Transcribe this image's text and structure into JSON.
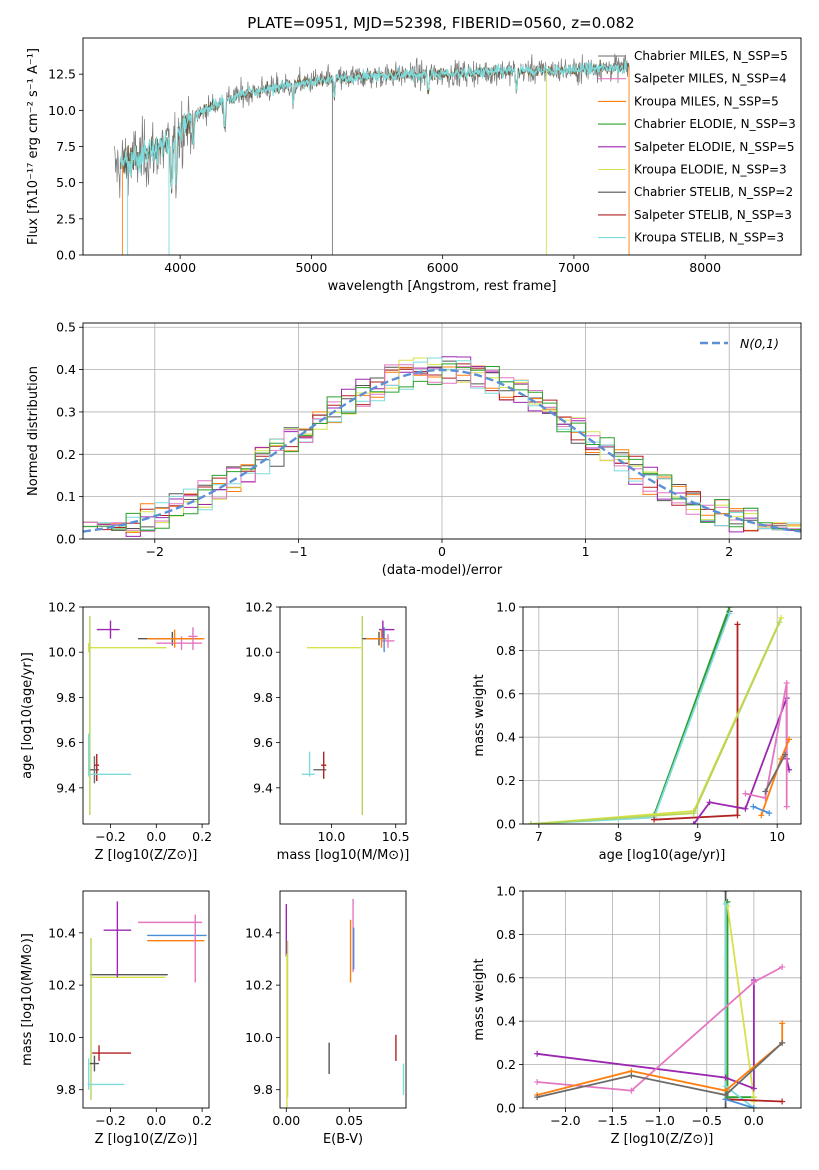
{
  "page": {
    "title": "PLATE=0951, MJD=52398, FIBERID=0560, z=0.082"
  },
  "colors": {
    "chabrier_miles": "#6b6b6b",
    "salpeter_miles": "#e377c2",
    "kroupa_miles": "#ff7f0e",
    "chabrier_elodie": "#2ca02c",
    "salpeter_elodie": "#9c27b0",
    "kroupa_elodie": "#d8e14a",
    "chabrier_stelib": "#555555",
    "salpeter_stelib": "#b22222",
    "kroupa_stelib": "#7fdbdb",
    "lime": "#b5d65a",
    "normal": "#5b8fd6"
  },
  "chart_data": [
    {
      "id": "spectrum",
      "type": "line",
      "title": "PLATE=0951, MJD=52398, FIBERID=0560, z=0.082",
      "xlabel": "wavelength [Angstrom, rest frame]",
      "ylabel": "Flux [fλ10⁻¹⁷ erg cm⁻² s⁻¹ A⁻¹]",
      "xlim": [
        3260,
        8730
      ],
      "ylim": [
        0,
        15.0
      ],
      "xticks": [
        4000,
        5000,
        6000,
        7000,
        8000
      ],
      "yticks": [
        0.0,
        2.5,
        5.0,
        7.5,
        10.0,
        12.5
      ],
      "legend": "top-right",
      "legend_entries": [
        "Chabrier MILES, N_SSP=5",
        "Salpeter MILES, N_SSP=4",
        "Kroupa MILES, N_SSP=5",
        "Chabrier ELODIE, N_SSP=3",
        "Salpeter ELODIE, N_SSP=5",
        "Kroupa ELODIE, N_SSP=3",
        "Chabrier STELIB, N_SSP=2",
        "Salpeter STELIB, N_SSP=3",
        "Kroupa STELIB, N_SSP=3"
      ],
      "continuum": {
        "x": [
          3500,
          3700,
          3900,
          4000,
          4100,
          4300,
          4500,
          4800,
          5000,
          5500,
          6000,
          6500,
          7000,
          7400
        ],
        "y": [
          6.0,
          6.8,
          7.5,
          8.5,
          9.6,
          10.5,
          11.2,
          11.7,
          12.0,
          12.4,
          12.5,
          12.7,
          12.8,
          13.0
        ]
      }
    },
    {
      "id": "residuals",
      "type": "line",
      "xlabel": "(data-model)/error",
      "ylabel": "Normed distribution",
      "xlim": [
        -2.5,
        2.5
      ],
      "ylim": [
        0,
        0.51
      ],
      "xticks": [
        -2,
        -1,
        0,
        1,
        2
      ],
      "yticks": [
        0.0,
        0.1,
        0.2,
        0.3,
        0.4,
        0.5
      ],
      "legend": "top-right",
      "legend_entries": [
        "N(0,1)"
      ],
      "bin_width": 0.1
    },
    {
      "id": "age_vs_Z",
      "type": "scatter",
      "xlabel": "Z [log10(Z/Z⊙)]",
      "ylabel": "age  [log10(age/yr)]",
      "xlim": [
        -0.32,
        0.23
      ],
      "ylim": [
        9.24,
        10.2
      ],
      "xticks": [
        -0.2,
        0.0,
        0.2
      ],
      "yticks": [
        9.4,
        9.6,
        9.8,
        10.0,
        10.2
      ],
      "points": [
        {
          "x": -0.295,
          "y": 10.02,
          "xerr": [
            0.0,
            0.34
          ],
          "yerr": [
            0.02,
            0.02
          ],
          "c": "#d8e14a"
        },
        {
          "x": -0.29,
          "y": 9.72,
          "xerr": [
            0.0,
            0.0
          ],
          "yerr": [
            0.44,
            0.44
          ],
          "c": "#b5d65a"
        },
        {
          "x": -0.2,
          "y": 10.1,
          "xerr": [
            0.06,
            0.04
          ],
          "yerr": [
            0.04,
            0.04
          ],
          "c": "#9c27b0"
        },
        {
          "x": 0.07,
          "y": 10.06,
          "xerr": [
            0.15,
            0.13
          ],
          "yerr": [
            0.03,
            0.03
          ],
          "c": "#555555"
        },
        {
          "x": 0.11,
          "y": 10.04,
          "xerr": [
            0.11,
            0.09
          ],
          "yerr": [
            0.03,
            0.03
          ],
          "c": "#e377c2"
        },
        {
          "x": 0.08,
          "y": 10.06,
          "xerr": [
            0.12,
            0.13
          ],
          "yerr": [
            0.04,
            0.04
          ],
          "c": "#ff7f0e"
        },
        {
          "x": 0.16,
          "y": 10.07,
          "xerr": [
            0.02,
            0.02
          ],
          "yerr": [
            0.06,
            0.04
          ],
          "c": "#e377c2"
        },
        {
          "x": -0.27,
          "y": 9.48,
          "xerr": [
            0.02,
            0.02
          ],
          "yerr": [
            0.06,
            0.06
          ],
          "c": "#6b6b6b"
        },
        {
          "x": -0.26,
          "y": 9.5,
          "xerr": [
            0.01,
            0.01
          ],
          "yerr": [
            0.07,
            0.05
          ],
          "c": "#b22222"
        },
        {
          "x": -0.25,
          "y": 9.46,
          "xerr": [
            0.04,
            0.14
          ],
          "yerr": [
            0.0,
            0.0
          ],
          "c": "#7fdbdb"
        },
        {
          "x": -0.295,
          "y": 9.52,
          "xerr": [
            0.0,
            0.0
          ],
          "yerr": [
            0.07,
            0.12
          ],
          "c": "#7fdbdb"
        }
      ]
    },
    {
      "id": "age_vs_mass",
      "type": "scatter",
      "xlabel": "mass [log10(M/M⊙)]",
      "ylabel": "",
      "xlim": [
        9.6,
        10.58
      ],
      "ylim": [
        9.24,
        10.2
      ],
      "xticks": [
        10.0,
        10.5
      ],
      "yticks": [
        9.4,
        9.6,
        9.8,
        10.0,
        10.2
      ],
      "points": [
        {
          "x": 10.23,
          "y": 10.02,
          "xerr": [
            0.42,
            0.0
          ],
          "yerr": [
            0.0,
            0.0
          ],
          "c": "#d8e14a"
        },
        {
          "x": 10.24,
          "y": 9.72,
          "xerr": [
            0.0,
            0.0
          ],
          "yerr": [
            0.44,
            0.44
          ],
          "c": "#b5d65a"
        },
        {
          "x": 10.4,
          "y": 10.1,
          "xerr": [
            0.03,
            0.09
          ],
          "yerr": [
            0.04,
            0.04
          ],
          "c": "#9c27b0"
        },
        {
          "x": 10.37,
          "y": 10.06,
          "xerr": [
            0.13,
            0.05
          ],
          "yerr": [
            0.03,
            0.03
          ],
          "c": "#555555"
        },
        {
          "x": 10.44,
          "y": 10.05,
          "xerr": [
            0.05,
            0.05
          ],
          "yerr": [
            0.03,
            0.03
          ],
          "c": "#e377c2"
        },
        {
          "x": 10.39,
          "y": 10.06,
          "xerr": [
            0.12,
            0.04
          ],
          "yerr": [
            0.04,
            0.04
          ],
          "c": "#ff7f0e"
        },
        {
          "x": 10.41,
          "y": 10.06,
          "xerr": [
            0.0,
            0.0
          ],
          "yerr": [
            0.06,
            0.05
          ],
          "c": "#4a90d9"
        },
        {
          "x": 9.92,
          "y": 9.48,
          "xerr": [
            0.06,
            0.04
          ],
          "yerr": [
            0.0,
            0.0
          ],
          "c": "#6b6b6b"
        },
        {
          "x": 9.94,
          "y": 9.5,
          "xerr": [
            0.02,
            0.02
          ],
          "yerr": [
            0.06,
            0.06
          ],
          "c": "#b22222"
        },
        {
          "x": 9.82,
          "y": 9.46,
          "xerr": [
            0.05,
            0.05
          ],
          "yerr": [
            0.0,
            0.0
          ],
          "c": "#7fdbdb"
        },
        {
          "x": 9.83,
          "y": 9.52,
          "xerr": [
            0.0,
            0.0
          ],
          "yerr": [
            0.07,
            0.04
          ],
          "c": "#7fdbdb"
        }
      ]
    },
    {
      "id": "massweight_vs_age",
      "type": "line",
      "xlabel": "age  [log10(age/yr)]",
      "ylabel": "mass weight",
      "xlim": [
        6.8,
        10.3
      ],
      "ylim": [
        0,
        1.0
      ],
      "xticks": [
        7,
        8,
        9,
        10
      ],
      "yticks": [
        0.0,
        0.2,
        0.4,
        0.6,
        0.8,
        1.0
      ],
      "series": [
        {
          "c": "#555555",
          "x": [
            8.45,
            9.4
          ],
          "y": [
            0.04,
            0.98
          ]
        },
        {
          "c": "#2ca02c",
          "x": [
            8.45,
            9.4
          ],
          "y": [
            0.04,
            1.0
          ]
        },
        {
          "c": "#7fdbdb",
          "x": [
            6.9,
            8.45,
            9.4
          ],
          "y": [
            0.0,
            0.03,
            0.97
          ]
        },
        {
          "c": "#b22222",
          "x": [
            8.45,
            9.5,
            9.5
          ],
          "y": [
            0.02,
            0.04,
            0.92
          ]
        },
        {
          "c": "#d8e14a",
          "x": [
            6.9,
            8.95,
            10.05
          ],
          "y": [
            0.0,
            0.06,
            0.95
          ]
        },
        {
          "c": "#b5d65a",
          "x": [
            6.9,
            8.95,
            10.03
          ],
          "y": [
            0.0,
            0.05,
            0.93
          ]
        },
        {
          "c": "#9c27b0",
          "x": [
            8.95,
            9.15,
            9.6,
            10.12,
            10.12,
            10.15
          ],
          "y": [
            0.0,
            0.1,
            0.07,
            0.58,
            0.3,
            0.25
          ]
        },
        {
          "c": "#e377c2",
          "x": [
            9.6,
            9.85,
            10.12,
            10.12
          ],
          "y": [
            0.14,
            0.12,
            0.65,
            0.08
          ]
        },
        {
          "c": "#ff7f0e",
          "x": [
            9.8,
            10.05,
            10.15
          ],
          "y": [
            0.04,
            0.3,
            0.39
          ]
        },
        {
          "c": "#6b6b6b",
          "x": [
            9.85,
            10.1
          ],
          "y": [
            0.15,
            0.32
          ]
        },
        {
          "c": "#4a90d9",
          "x": [
            9.7,
            9.9
          ],
          "y": [
            0.08,
            0.05
          ]
        }
      ]
    },
    {
      "id": "mass_vs_Z",
      "type": "scatter",
      "xlabel": "Z [log10(Z/Z⊙)]",
      "ylabel": "mass [log10(M/M⊙)]",
      "xlim": [
        -0.32,
        0.23
      ],
      "ylim": [
        9.73,
        10.56
      ],
      "xticks": [
        -0.2,
        0.0,
        0.2
      ],
      "yticks": [
        9.8,
        10.0,
        10.2,
        10.4
      ],
      "points": [
        {
          "x": -0.29,
          "y": 10.24,
          "xerr": [
            0.0,
            0.34
          ],
          "yerr": [
            0.0,
            0.0
          ],
          "c": "#555555"
        },
        {
          "x": -0.28,
          "y": 10.23,
          "xerr": [
            0.0,
            0.32
          ],
          "yerr": [
            0.0,
            0.0
          ],
          "c": "#d8e14a"
        },
        {
          "x": -0.285,
          "y": 10.07,
          "xerr": [
            0.0,
            0.0
          ],
          "yerr": [
            0.31,
            0.31
          ],
          "c": "#b5d65a"
        },
        {
          "x": -0.17,
          "y": 10.41,
          "xerr": [
            0.06,
            0.06
          ],
          "yerr": [
            0.18,
            0.11
          ],
          "c": "#9c27b0"
        },
        {
          "x": 0.07,
          "y": 10.44,
          "xerr": [
            0.15,
            0.13
          ],
          "yerr": [
            0.0,
            0.0
          ],
          "c": "#e377c2"
        },
        {
          "x": 0.08,
          "y": 10.37,
          "xerr": [
            0.12,
            0.13
          ],
          "yerr": [
            0.0,
            0.0
          ],
          "c": "#ff7f0e"
        },
        {
          "x": 0.09,
          "y": 10.39,
          "xerr": [
            0.13,
            0.13
          ],
          "yerr": [
            0.0,
            0.0
          ],
          "c": "#4a90d9"
        },
        {
          "x": 0.17,
          "y": 10.34,
          "xerr": [
            0.0,
            0.0
          ],
          "yerr": [
            0.13,
            0.13
          ],
          "c": "#e377c2"
        },
        {
          "x": -0.27,
          "y": 9.9,
          "xerr": [
            0.02,
            0.02
          ],
          "yerr": [
            0.03,
            0.03
          ],
          "c": "#555555"
        },
        {
          "x": -0.25,
          "y": 9.94,
          "xerr": [
            0.03,
            0.14
          ],
          "yerr": [
            0.03,
            0.03
          ],
          "c": "#b22222"
        },
        {
          "x": -0.22,
          "y": 9.82,
          "xerr": [
            0.08,
            0.08
          ],
          "yerr": [
            0.0,
            0.0
          ],
          "c": "#7fdbdb"
        },
        {
          "x": -0.295,
          "y": 9.86,
          "xerr": [
            0.0,
            0.0
          ],
          "yerr": [
            0.06,
            0.06
          ],
          "c": "#7fdbdb"
        }
      ]
    },
    {
      "id": "mass_vs_ebv",
      "type": "scatter",
      "xlabel": "E(B-V)",
      "ylabel": "",
      "xlim": [
        -0.005,
        0.095
      ],
      "ylim": [
        9.73,
        10.56
      ],
      "xticks": [
        0.0,
        0.05
      ],
      "yticks": [
        9.8,
        10.0,
        10.2,
        10.4
      ],
      "points": [
        {
          "x": 0.0,
          "y": 10.41,
          "xerr": [
            0.0,
            0.0
          ],
          "yerr": [
            0.1,
            0.1
          ],
          "c": "#9c27b0"
        },
        {
          "x": 0.001,
          "y": 10.07,
          "xerr": [
            0.0,
            0.0
          ],
          "yerr": [
            0.3,
            0.3
          ],
          "c": "#b5d65a"
        },
        {
          "x": 0.0005,
          "y": 10.02,
          "xerr": [
            0.0,
            0.0
          ],
          "yerr": [
            0.3,
            0.3
          ],
          "c": "#d8e14a"
        },
        {
          "x": 0.051,
          "y": 10.33,
          "xerr": [
            0.0,
            0.0
          ],
          "yerr": [
            0.12,
            0.12
          ],
          "c": "#ff7f0e"
        },
        {
          "x": 0.053,
          "y": 10.39,
          "xerr": [
            0.0,
            0.0
          ],
          "yerr": [
            0.14,
            0.14
          ],
          "c": "#e377c2"
        },
        {
          "x": 0.0535,
          "y": 10.34,
          "xerr": [
            0.0,
            0.0
          ],
          "yerr": [
            0.08,
            0.08
          ],
          "c": "#4a90d9"
        },
        {
          "x": 0.034,
          "y": 9.92,
          "xerr": [
            0.0,
            0.0
          ],
          "yerr": [
            0.06,
            0.06
          ],
          "c": "#555555"
        },
        {
          "x": 0.087,
          "y": 9.96,
          "xerr": [
            0.0,
            0.0
          ],
          "yerr": [
            0.05,
            0.05
          ],
          "c": "#b22222"
        },
        {
          "x": 0.093,
          "y": 9.84,
          "xerr": [
            0.0,
            0.0
          ],
          "yerr": [
            0.06,
            0.06
          ],
          "c": "#7fdbdb"
        }
      ]
    },
    {
      "id": "massweight_vs_Z",
      "type": "line",
      "xlabel": "Z [log10(Z/Z⊙)]",
      "ylabel": "mass weight",
      "xlim": [
        -2.45,
        0.5
      ],
      "ylim": [
        0,
        1.0
      ],
      "xticks": [
        -2.0,
        -1.5,
        -1.0,
        -0.5,
        0.0
      ],
      "yticks": [
        0.0,
        0.2,
        0.4,
        0.6,
        0.8,
        1.0
      ],
      "series": [
        {
          "c": "#555555",
          "x": [
            -0.3,
            -0.3
          ],
          "y": [
            0.0,
            1.0
          ]
        },
        {
          "c": "#2ca02c",
          "x": [
            -0.28,
            -0.28,
            0.0
          ],
          "y": [
            0.95,
            0.05,
            0.05
          ]
        },
        {
          "c": "#d8e14a",
          "x": [
            -0.28,
            0.0,
            0.0
          ],
          "y": [
            0.93,
            0.05,
            0.03
          ]
        },
        {
          "c": "#7fdbdb",
          "x": [
            -0.3,
            -0.3,
            0.0
          ],
          "y": [
            0.94,
            0.1,
            0.0
          ]
        },
        {
          "c": "#9c27b0",
          "x": [
            -2.3,
            -0.3,
            0.0,
            0.0
          ],
          "y": [
            0.25,
            0.14,
            0.09,
            0.59
          ]
        },
        {
          "c": "#e377c2",
          "x": [
            -2.3,
            -1.3,
            0.0,
            0.3
          ],
          "y": [
            0.12,
            0.08,
            0.58,
            0.65
          ]
        },
        {
          "c": "#ff7f0e",
          "x": [
            -2.3,
            -1.3,
            -0.3,
            0.3,
            0.3
          ],
          "y": [
            0.06,
            0.17,
            0.08,
            0.3,
            0.39
          ]
        },
        {
          "c": "#b22222",
          "x": [
            -0.3,
            0.3
          ],
          "y": [
            0.04,
            0.03
          ]
        },
        {
          "c": "#6b6b6b",
          "x": [
            -2.3,
            -1.3,
            -0.3,
            0.3
          ],
          "y": [
            0.05,
            0.15,
            0.06,
            0.3
          ]
        },
        {
          "c": "#4a90d9",
          "x": [
            -0.3,
            0.0
          ],
          "y": [
            0.04,
            0.0
          ]
        }
      ]
    }
  ]
}
